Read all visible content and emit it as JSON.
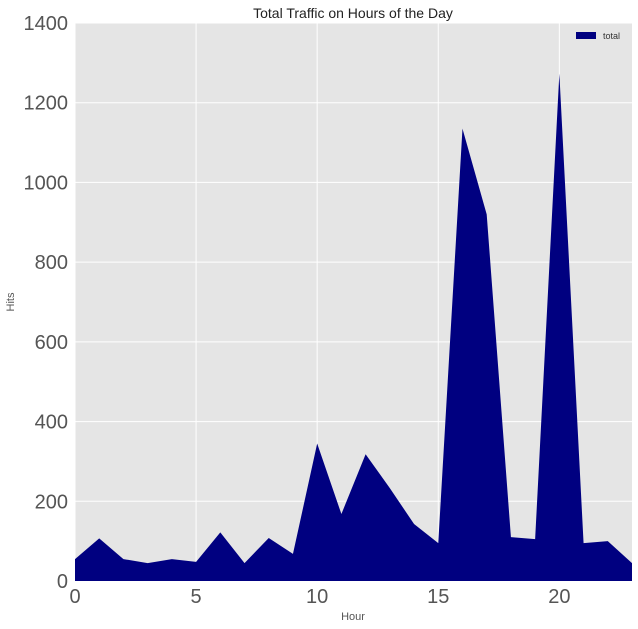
{
  "chart_data": {
    "type": "area",
    "title": "Total Traffic on Hours of the Day",
    "xlabel": "Hour",
    "ylabel": "Hits",
    "xlim": [
      0,
      23
    ],
    "ylim": [
      0,
      1400
    ],
    "xticks": [
      "0",
      "5",
      "10",
      "15",
      "20"
    ],
    "yticks": [
      "0",
      "200",
      "400",
      "600",
      "800",
      "1000",
      "1200",
      "1400"
    ],
    "grid": true,
    "legend_position": "top-right",
    "x": [
      0,
      1,
      2,
      3,
      4,
      5,
      6,
      7,
      8,
      9,
      10,
      11,
      12,
      13,
      14,
      15,
      16,
      17,
      18,
      19,
      20,
      21,
      22,
      23
    ],
    "series": [
      {
        "name": "total",
        "color": "#000080",
        "values": [
          55,
          107,
          55,
          45,
          55,
          48,
          122,
          45,
          108,
          68,
          345,
          168,
          318,
          233,
          143,
          95,
          1135,
          920,
          110,
          105,
          1273,
          95,
          100,
          45
        ]
      }
    ]
  },
  "colors": {
    "plot_background": "#e5e5e5",
    "grid": "#ffffff",
    "area_fill": "#000080"
  }
}
